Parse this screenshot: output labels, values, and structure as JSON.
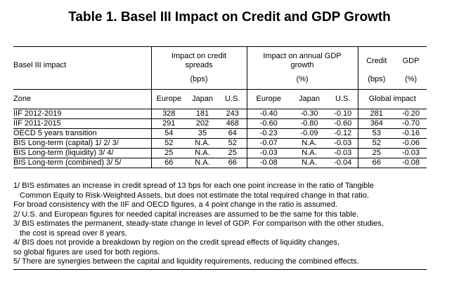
{
  "title": "Table 1. Basel III Impact on Credit and GDP Growth",
  "header": {
    "basel_label": "Basel III impact",
    "credit_spreads_line1": "Impact on credit",
    "credit_spreads_line2": "spreads",
    "gdp_growth_line1": "Impact on annual GDP",
    "gdp_growth_line2": "growth",
    "credit_label": "Credit",
    "gdp_label": "GDP",
    "bps": "(bps)",
    "pct": "(%)",
    "credit_bps": "(bps)",
    "gdp_pct": "(%)",
    "zone": "Zone",
    "europe": "Europe",
    "japan": "Japan",
    "us": "U.S.",
    "europe2": "Europe",
    "japan2": "Japan",
    "us2": "U.S.",
    "global_impact": "Global impact"
  },
  "rows": [
    {
      "label": "IIF 2012-2019",
      "cs_eu": "328",
      "cs_jp": "181",
      "cs_us": "243",
      "g_eu": "-0.40",
      "g_jp": "-0.30",
      "g_us": "-0.10",
      "credit": "281",
      "gdp": "-0.20"
    },
    {
      "label": "IIF 2011-2015",
      "cs_eu": "291",
      "cs_jp": "202",
      "cs_us": "468",
      "g_eu": "-0.60",
      "g_jp": "-0.80",
      "g_us": "-0.60",
      "credit": "364",
      "gdp": "-0.70"
    },
    {
      "label": "OECD 5 years transition",
      "cs_eu": "54",
      "cs_jp": "35",
      "cs_us": "64",
      "g_eu": "-0.23",
      "g_jp": "-0.09",
      "g_us": "-0.12",
      "credit": "53",
      "gdp": "-0.16"
    },
    {
      "label": "BIS Long-term (capital)  1/  2/  3/",
      "cs_eu": "52",
      "cs_jp": "N.A.",
      "cs_us": "52",
      "g_eu": "-0.07",
      "g_jp": "N.A.",
      "g_us": "-0.03",
      "credit": "52",
      "gdp": "-0.06"
    },
    {
      "label": "BIS Long-term (liquidity)  3/  4/",
      "cs_eu": "25",
      "cs_jp": "N.A.",
      "cs_us": "25",
      "g_eu": "-0.03",
      "g_jp": "N.A.",
      "g_us": "-0.03",
      "credit": "25",
      "gdp": "-0.03"
    },
    {
      "label": "BIS Long-term (combined)  3/  5/",
      "cs_eu": "66",
      "cs_jp": "N.A.",
      "cs_us": "66",
      "g_eu": "-0.08",
      "g_jp": "N.A.",
      "g_us": "-0.04",
      "credit": "66",
      "gdp": "-0.08"
    }
  ],
  "notes": [
    "1/ BIS estimates an increase in credit spread of 13 bps for each one point increase in the ratio of Tangible",
    "Common Equity to Risk-Weighted Assets, but does not estimate the total required change in that ratio.",
    "For broad consistency with the IIF and OECD figures, a 4 point change in the ratio is assumed.",
    "2/ U.S. and European figures for needed capital increases are assumed to be the same for this table.",
    "3/ BIS estimates the permanent, steady-state change in level of GDP. For comparison with the other studies,",
    "the cost is spread over 8 years.",
    "4/ BIS does not provide a breakdown by region on the credit spread effects of liquidity changes,",
    "so global figures are used for both regions.",
    "5/ There are synergies between the capital and liquidity requirements, reducing the combined effects."
  ]
}
